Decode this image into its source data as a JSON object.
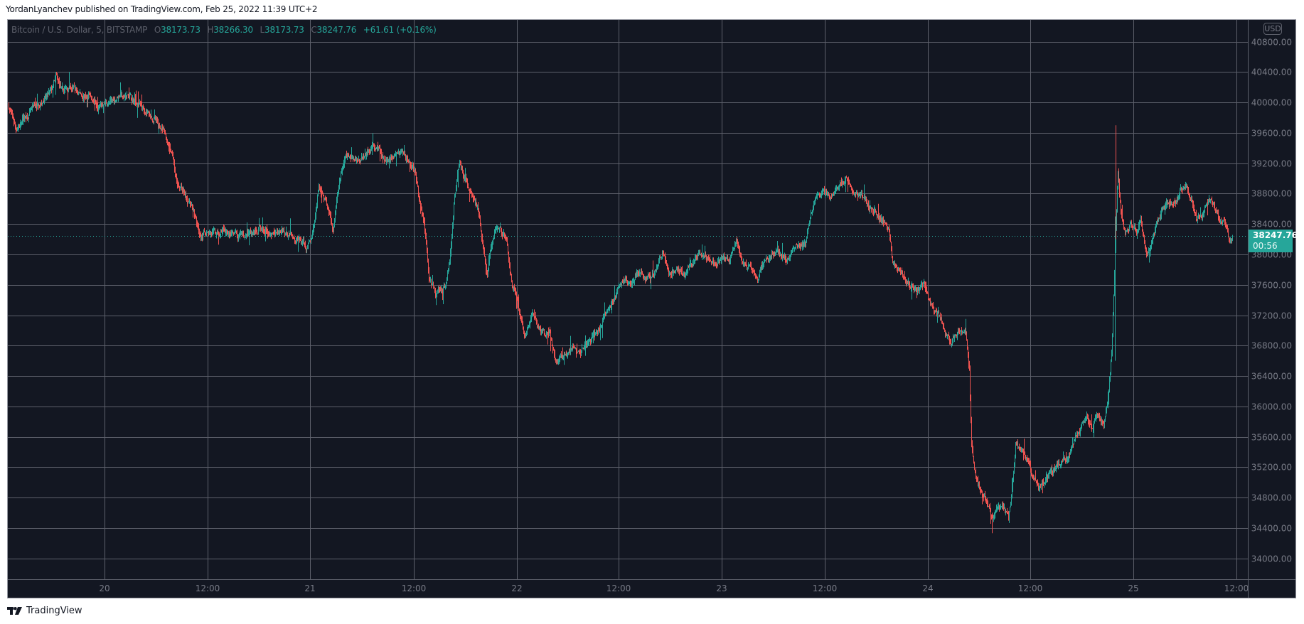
{
  "header": {
    "published_line": "YordanLyanchev published on TradingView.com, Feb 25, 2022 11:39 UTC+2"
  },
  "legend": {
    "symbol": "Bitcoin / U.S. Dollar, 5, BITSTAMP",
    "open_label": "O",
    "open": "38173.73",
    "high_label": "H",
    "high": "38266.30",
    "low_label": "L",
    "low": "38173.73",
    "close_label": "C",
    "close": "38247.76",
    "change": "+61.61 (+0.16%)"
  },
  "price_scale": {
    "currency_badge": "USD",
    "last_price": "38247.76",
    "countdown": "00:56"
  },
  "footer": {
    "brand": "TradingView"
  },
  "colors": {
    "background": "#131722",
    "grid": "#5d606b",
    "axis_text": "#787b86",
    "up": "#26a69a",
    "down": "#ef5350",
    "last_price_line": "#26a69a"
  },
  "chart_data": {
    "type": "candlestick",
    "title": "Bitcoin / U.S. Dollar, 5, BITSTAMP",
    "xlabel": "",
    "ylabel": "USD",
    "ylim": [
      33700,
      40950
    ],
    "grid": true,
    "legend_position": "top-left",
    "y_ticks": [
      40800,
      40400,
      40000,
      39600,
      39200,
      38800,
      38400,
      38000,
      37600,
      37200,
      36800,
      36400,
      36000,
      35600,
      35200,
      34800,
      34400,
      34000
    ],
    "y_tick_labels": [
      "40800.00",
      "40400.00",
      "40000.00",
      "39600.00",
      "39200.00",
      "38800.00",
      "38400.00",
      "38000.00",
      "37600.00",
      "37200.00",
      "36800.00",
      "36400.00",
      "36000.00",
      "35600.00",
      "35200.00",
      "34800.00",
      "34400.00",
      "34000.00"
    ],
    "x_ticks": [
      "20",
      "12:00",
      "21",
      "12:00",
      "22",
      "12:00",
      "23",
      "12:00",
      "24",
      "12:00",
      "25",
      "12:00"
    ],
    "ohlc_last": {
      "open": 38173.73,
      "high": 38266.3,
      "low": 38173.73,
      "close": 38247.76,
      "change": 61.61,
      "change_pct": 0.16
    },
    "approx_price_path": {
      "description": "Approximate close path read from the chart (x = time, Feb 19 ~11:00 to Feb 25 ~11:40 UTC+2)",
      "x": [
        "Feb19 11:00",
        "Feb19 14:00",
        "Feb19 18:00",
        "Feb19 21:00",
        "Feb20 00:00",
        "Feb20 06:00",
        "Feb20 09:00",
        "Feb20 12:00",
        "Feb20 18:00",
        "Feb21 00:00",
        "Feb21 02:00",
        "Feb21 06:00",
        "Feb21 12:00",
        "Feb21 14:00",
        "Feb21 16:00",
        "Feb21 20:00",
        "Feb21 22:00",
        "Feb22 00:00",
        "Feb22 06:00",
        "Feb22 12:00",
        "Feb22 18:00",
        "Feb23 00:00",
        "Feb23 06:00",
        "Feb23 12:00",
        "Feb23 18:00",
        "Feb24 00:00",
        "Feb24 05:00",
        "Feb24 06:00",
        "Feb24 08:00",
        "Feb24 12:00",
        "Feb24 18:00",
        "Feb24 20:00",
        "Feb24 22:00",
        "Feb25 00:00",
        "Feb25 06:00",
        "Feb25 11:40"
      ],
      "values": [
        39950,
        39750,
        40300,
        40150,
        39950,
        39200,
        38600,
        38250,
        38250,
        38300,
        38900,
        39300,
        39400,
        38400,
        37500,
        39300,
        38500,
        37500,
        36500,
        37000,
        37700,
        37900,
        38000,
        38850,
        38500,
        37500,
        36500,
        35200,
        34400,
        35200,
        35500,
        35900,
        39600,
        38300,
        38800,
        38247.76
      ]
    },
    "notable_points": {
      "high": {
        "approx": 40380,
        "time": "Feb19 ~20:00"
      },
      "low": {
        "approx": 34330,
        "time": "Feb24 ~09:00"
      },
      "spike_high": {
        "approx": 39700,
        "time": "Feb24 ~22:30"
      }
    }
  }
}
